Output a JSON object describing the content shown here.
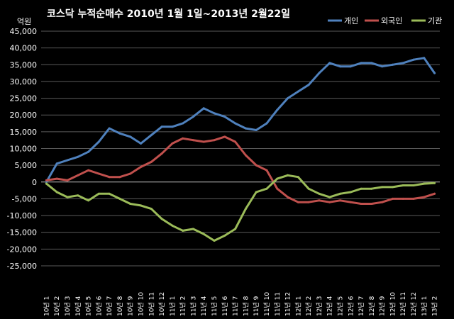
{
  "chart_data": {
    "type": "line",
    "title": "코스닥 누적순매수 2010년 1월 1일~2013년 2월22일",
    "unit_label": "억원",
    "ylim": [
      -25000,
      45000
    ],
    "y_ticks": [
      "-25,000",
      "-20,000",
      "-15,000",
      "-10,000",
      "-5,000",
      "0",
      "5,000",
      "10,000",
      "15,000",
      "20,000",
      "25,000",
      "30,000",
      "35,000",
      "40,000",
      "45,000"
    ],
    "y_tick_values": [
      -25000,
      -20000,
      -15000,
      -10000,
      -5000,
      0,
      5000,
      10000,
      15000,
      20000,
      25000,
      30000,
      35000,
      40000,
      45000
    ],
    "grid": true,
    "legend_position": "top-right",
    "categories": [
      "10년 1월",
      "10년 2월",
      "10년 3월",
      "10년 4월",
      "10년 5월",
      "10년 6월",
      "10년 7월",
      "10년 8월",
      "10년 9월",
      "10년 10월",
      "10년 11월",
      "10년 12월",
      "11년 1월",
      "11년 2월",
      "11년 3월",
      "11년 4월",
      "11년 5월",
      "11년 6월",
      "11년 7월",
      "11년 8월",
      "11년 9월",
      "11년 10월",
      "11년 11월",
      "11년 12월",
      "12년 1월",
      "12년 2월",
      "12년 3월",
      "12년 4월",
      "12년 5월",
      "12년 6월",
      "12년 7월",
      "12년 8월",
      "12년 9월",
      "12년 10월",
      "12년 11월",
      "12년 12월",
      "13년 1월",
      "13년 2월"
    ],
    "x_tick_labels": [
      "10년 1",
      "10년 2",
      "10년 3",
      "10년 4",
      "10년 5",
      "10년 6",
      "10년 7",
      "10년 8",
      "10년 9",
      "10년 10",
      "10년 11",
      "10년 12",
      "11년 1",
      "11년 2",
      "11년 3",
      "11년 4",
      "11년 5",
      "11년 6",
      "11년 7",
      "11년 8",
      "11년 9",
      "11년 10",
      "11년 11",
      "11년 12",
      "12년 1",
      "12년 2",
      "12년 3",
      "12년 4",
      "12년 5",
      "12년 6",
      "12년 7",
      "12년 8",
      "12년 9",
      "12년 10",
      "12년 11",
      "12년 12",
      "13년 1",
      "13년 2"
    ],
    "series": [
      {
        "name": "개인",
        "color": "#4F81BD",
        "values": [
          0,
          5500,
          6500,
          7500,
          9000,
          12000,
          16000,
          14500,
          13500,
          11500,
          14000,
          16500,
          16500,
          17500,
          19500,
          22000,
          20500,
          19500,
          17500,
          16000,
          15500,
          17500,
          21500,
          25000,
          27000,
          29000,
          32500,
          35500,
          34500,
          34500,
          35500,
          35500,
          34500,
          35000,
          35500,
          36500,
          37000,
          32500
        ]
      },
      {
        "name": "외국인",
        "color": "#C0504D",
        "values": [
          500,
          1000,
          500,
          2000,
          3500,
          2500,
          1500,
          1500,
          2500,
          4500,
          6000,
          8500,
          11500,
          13000,
          12500,
          12000,
          12500,
          13500,
          12000,
          8000,
          5000,
          3500,
          -2000,
          -4500,
          -6000,
          -6000,
          -5500,
          -6000,
          -5500,
          -6000,
          -6500,
          -6500,
          -6000,
          -5000,
          -5000,
          -5000,
          -4500,
          -3500
        ]
      },
      {
        "name": "기관",
        "color": "#9BBB59",
        "values": [
          -500,
          -3000,
          -4500,
          -4000,
          -5500,
          -3500,
          -3500,
          -5000,
          -6500,
          -7000,
          -8000,
          -11000,
          -13000,
          -14500,
          -14000,
          -15500,
          -17500,
          -16000,
          -14000,
          -8000,
          -3000,
          -2000,
          1000,
          2000,
          1500,
          -2000,
          -3500,
          -4500,
          -3500,
          -3000,
          -2000,
          -2000,
          -1500,
          -1500,
          -1000,
          -1000,
          -500,
          -300
        ]
      }
    ]
  }
}
